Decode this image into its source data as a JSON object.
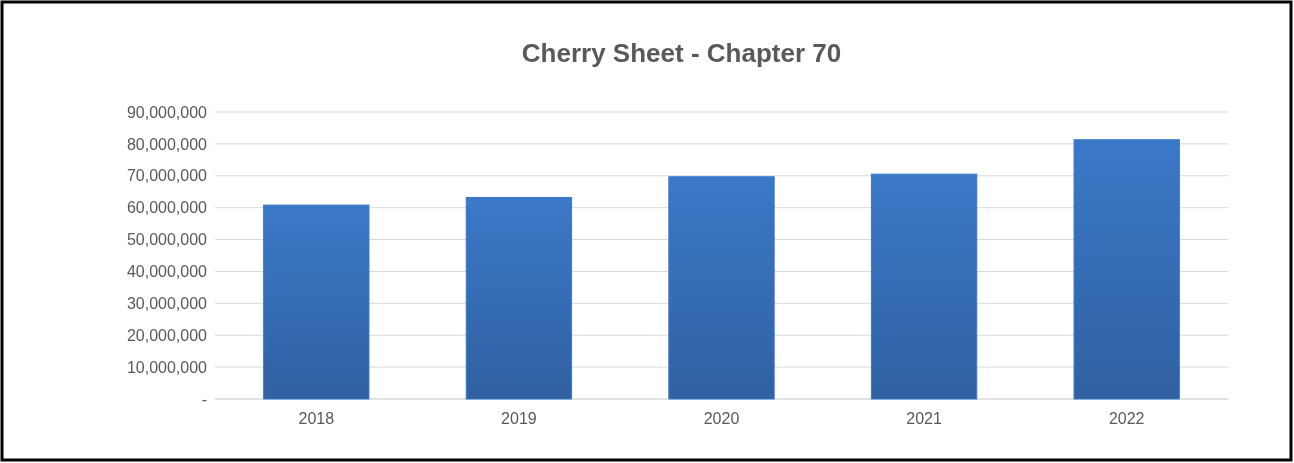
{
  "chart_data": {
    "type": "bar",
    "title": "Cherry Sheet - Chapter 70",
    "categories": [
      "2018",
      "2019",
      "2020",
      "2021",
      "2022"
    ],
    "values": [
      60800000,
      63200000,
      69700000,
      70500000,
      81300000
    ],
    "color": "#3b78c8",
    "ylim": [
      0,
      90000000
    ],
    "yticks": [
      {
        "value": 0,
        "label": "-"
      },
      {
        "value": 10000000,
        "label": "10,000,000"
      },
      {
        "value": 20000000,
        "label": "20,000,000"
      },
      {
        "value": 30000000,
        "label": "30,000,000"
      },
      {
        "value": 40000000,
        "label": "40,000,000"
      },
      {
        "value": 50000000,
        "label": "50,000,000"
      },
      {
        "value": 60000000,
        "label": "60,000,000"
      },
      {
        "value": 70000000,
        "label": "70,000,000"
      },
      {
        "value": 80000000,
        "label": "80,000,000"
      },
      {
        "value": 90000000,
        "label": "90,000,000"
      }
    ],
    "grid": "y"
  }
}
